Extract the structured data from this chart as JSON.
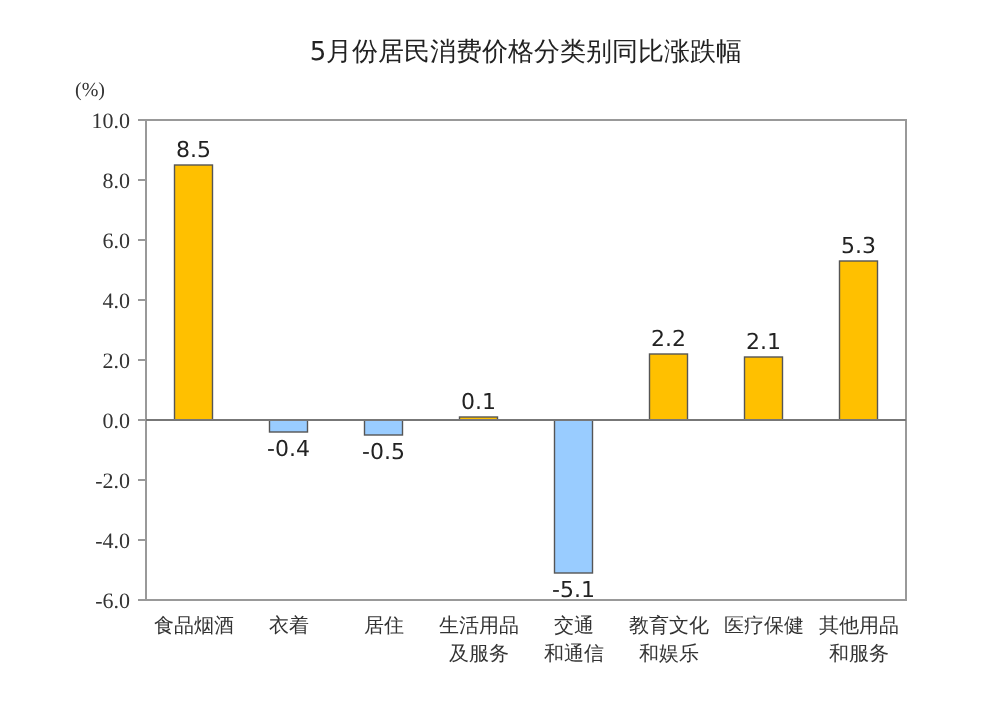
{
  "chart_data": {
    "type": "bar",
    "title": "5月份居民消费价格分类别同比涨跌幅",
    "ylabel": "(%)",
    "categories": [
      "食品烟酒",
      "衣着",
      "居住",
      "生活用品及服务",
      "交通和通信",
      "教育文化和娱乐",
      "医疗保健",
      "其他用品和服务"
    ],
    "values": [
      8.5,
      -0.4,
      -0.5,
      0.1,
      -5.1,
      2.2,
      2.1,
      5.3
    ],
    "colors": [
      "#ffc000",
      "#99ccff",
      "#99ccff",
      "#ffc000",
      "#99ccff",
      "#ffc000",
      "#ffc000",
      "#ffc000"
    ],
    "ylim": [
      -6,
      10
    ],
    "yticks": [
      {
        "value": -6,
        "label": "-6.0"
      },
      {
        "value": -4,
        "label": "-4.0"
      },
      {
        "value": -2,
        "label": "-2.0"
      },
      {
        "value": 0,
        "label": "0.0"
      },
      {
        "value": 2,
        "label": "2.0"
      },
      {
        "value": 4,
        "label": "4.0"
      },
      {
        "value": 6,
        "label": "6.0"
      },
      {
        "value": 8,
        "label": "8.0"
      },
      {
        "value": 10,
        "label": "10.0"
      }
    ],
    "data_labels": true
  }
}
